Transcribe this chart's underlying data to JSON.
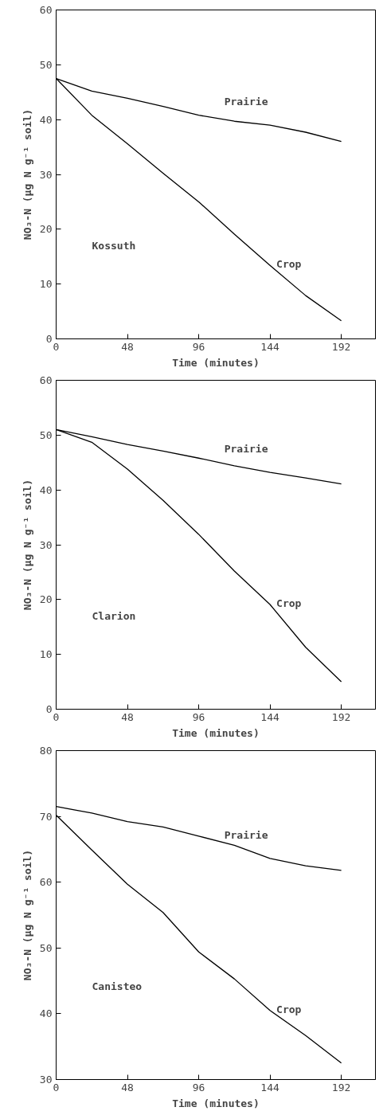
{
  "chart_data": [
    {
      "type": "line",
      "title": "Kossuth",
      "xlabel": "Time (minutes)",
      "ylabel": "NO₃-N (μg N g⁻¹ soil)",
      "x": [
        0,
        24,
        48,
        72,
        96,
        120,
        144,
        168,
        192
      ],
      "xlim": [
        0,
        215
      ],
      "xticks": [
        0,
        48,
        96,
        144,
        192
      ],
      "ylim": [
        0,
        60
      ],
      "yticks": [
        0,
        10,
        20,
        30,
        40,
        50,
        60
      ],
      "grid": false,
      "series": [
        {
          "name": "Prairie",
          "color": "#000000",
          "values": [
            47.5,
            45.2,
            43.9,
            42.4,
            40.8,
            39.7,
            39.0,
            37.7,
            36.0
          ]
        },
        {
          "name": "Crop",
          "color": "#000000",
          "values": [
            47.5,
            40.8,
            35.6,
            30.2,
            25.0,
            19.1,
            13.4,
            7.9,
            3.3
          ]
        }
      ]
    },
    {
      "type": "line",
      "title": "Clarion",
      "xlabel": "Time (minutes)",
      "ylabel": "NO₃-N (μg N g⁻¹ soil)",
      "x": [
        0,
        24,
        48,
        72,
        96,
        120,
        144,
        168,
        192
      ],
      "xlim": [
        0,
        215
      ],
      "xticks": [
        0,
        48,
        96,
        144,
        192
      ],
      "ylim": [
        0,
        60
      ],
      "yticks": [
        0,
        10,
        20,
        30,
        40,
        50,
        60
      ],
      "grid": false,
      "series": [
        {
          "name": "Prairie",
          "color": "#000000",
          "values": [
            51.0,
            49.7,
            48.3,
            47.1,
            45.8,
            44.4,
            43.2,
            42.2,
            41.1
          ]
        },
        {
          "name": "Crop",
          "color": "#000000",
          "values": [
            51.0,
            48.7,
            43.8,
            38.1,
            31.9,
            25.2,
            19.1,
            11.3,
            5.0
          ]
        }
      ]
    },
    {
      "type": "line",
      "title": "Canisteo",
      "xlabel": "Time (minutes)",
      "ylabel": "NO₃-N (μg N g⁻¹ soil)",
      "x": [
        0,
        24,
        48,
        72,
        96,
        120,
        144,
        168,
        192
      ],
      "xlim": [
        0,
        215
      ],
      "xticks": [
        0,
        48,
        96,
        144,
        192
      ],
      "ylim": [
        30,
        80
      ],
      "yticks": [
        30,
        40,
        50,
        60,
        70,
        80
      ],
      "grid": false,
      "series": [
        {
          "name": "Prairie",
          "color": "#000000",
          "values": [
            71.5,
            70.5,
            69.2,
            68.4,
            67.0,
            65.6,
            63.6,
            62.5,
            61.8
          ]
        },
        {
          "name": "Crop",
          "color": "#000000",
          "values": [
            70.2,
            64.9,
            59.7,
            55.4,
            49.4,
            45.3,
            40.5,
            36.7,
            32.5
          ]
        }
      ]
    }
  ]
}
